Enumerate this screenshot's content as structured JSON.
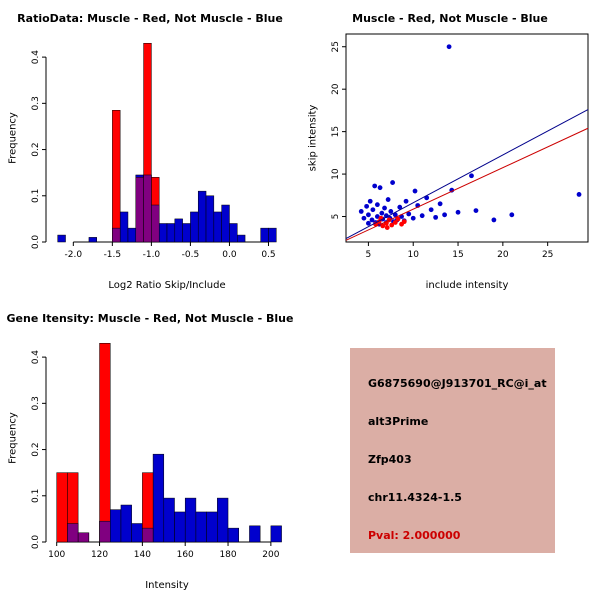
{
  "colors": {
    "muscle_red": "#FF0000",
    "not_muscle_blue": "#0000CD",
    "overlap_purple": "#800080",
    "fit_line_blue": "#00008B",
    "fit_line_red": "#CC0000"
  },
  "chart_data": [
    {
      "type": "bar",
      "title": "RatioData: Muscle - Red, Not Muscle - Blue",
      "xlabel": "Log2 Ratio Skip/Include",
      "ylabel": "Frequency",
      "xlim": [
        -2.35,
        0.75
      ],
      "ylim": [
        0,
        0.45
      ],
      "xticks": [
        -2.0,
        -1.5,
        -1.0,
        -0.5,
        0.0,
        0.5
      ],
      "yticks": [
        0.0,
        0.1,
        0.2,
        0.3,
        0.4
      ],
      "xtick_decimals": 1,
      "ytick_decimals": 1,
      "bin_width": 0.1,
      "series": [
        {
          "name": "not_muscle",
          "color": "#0000CD",
          "bins": [
            [
              -2.2,
              0.015
            ],
            [
              -1.8,
              0.01
            ],
            [
              -1.5,
              0.03
            ],
            [
              -1.4,
              0.065
            ],
            [
              -1.3,
              0.03
            ],
            [
              -1.2,
              0.145
            ],
            [
              -1.1,
              0.145
            ],
            [
              -1.0,
              0.08
            ],
            [
              -0.9,
              0.04
            ],
            [
              -0.8,
              0.04
            ],
            [
              -0.7,
              0.05
            ],
            [
              -0.6,
              0.04
            ],
            [
              -0.5,
              0.065
            ],
            [
              -0.4,
              0.11
            ],
            [
              -0.3,
              0.1
            ],
            [
              -0.2,
              0.065
            ],
            [
              -0.1,
              0.08
            ],
            [
              0.0,
              0.04
            ],
            [
              0.1,
              0.015
            ],
            [
              0.4,
              0.03
            ],
            [
              0.5,
              0.03
            ]
          ]
        },
        {
          "name": "muscle",
          "color": "#FF0000",
          "bins": [
            [
              -1.5,
              0.285
            ],
            [
              -1.2,
              0.14
            ],
            [
              -1.1,
              0.43
            ],
            [
              -1.0,
              0.14
            ]
          ]
        },
        {
          "name": "overlap",
          "color": "#800080",
          "bins": [
            [
              -1.5,
              0.03
            ],
            [
              -1.2,
              0.14
            ],
            [
              -1.1,
              0.145
            ],
            [
              -1.0,
              0.08
            ]
          ]
        }
      ]
    },
    {
      "type": "scatter",
      "title": "Muscle - Red, Not Muscle - Blue",
      "xlabel": "include intensity",
      "ylabel": "skip intensity",
      "xlim": [
        2.5,
        29.5
      ],
      "ylim": [
        2,
        26.5
      ],
      "xticks": [
        5,
        10,
        15,
        20,
        25
      ],
      "yticks": [
        5,
        10,
        15,
        20,
        25
      ],
      "frame": "box",
      "series": [
        {
          "name": "not_muscle",
          "color": "#0000CD",
          "points": [
            [
              4.2,
              5.6
            ],
            [
              4.5,
              4.8
            ],
            [
              4.8,
              6.2
            ],
            [
              5,
              4.2
            ],
            [
              5,
              5.2
            ],
            [
              5.2,
              6.8
            ],
            [
              5.4,
              4.6
            ],
            [
              5.5,
              5.8
            ],
            [
              5.7,
              8.6
            ],
            [
              5.8,
              4.3
            ],
            [
              6,
              5
            ],
            [
              6,
              6.4
            ],
            [
              6.2,
              4.1
            ],
            [
              6.3,
              8.4
            ],
            [
              6.5,
              5.4
            ],
            [
              6.6,
              4.7
            ],
            [
              6.8,
              6
            ],
            [
              7,
              4.3
            ],
            [
              7,
              5.1
            ],
            [
              7.2,
              7
            ],
            [
              7.4,
              4.8
            ],
            [
              7.5,
              5.6
            ],
            [
              7.7,
              9
            ],
            [
              7.8,
              4.4
            ],
            [
              8,
              5.2
            ],
            [
              8.2,
              4.6
            ],
            [
              8.5,
              6.1
            ],
            [
              8.7,
              5
            ],
            [
              9,
              4.5
            ],
            [
              9.2,
              6.8
            ],
            [
              9.5,
              5.3
            ],
            [
              10,
              4.8
            ],
            [
              10.2,
              8
            ],
            [
              10.5,
              6.3
            ],
            [
              11,
              5.1
            ],
            [
              11.5,
              7.2
            ],
            [
              12,
              5.8
            ],
            [
              12.5,
              4.9
            ],
            [
              13,
              6.5
            ],
            [
              13.5,
              5.2
            ],
            [
              14,
              25
            ],
            [
              14.3,
              8.1
            ],
            [
              15,
              5.5
            ],
            [
              16.5,
              9.8
            ],
            [
              17,
              5.7
            ],
            [
              19,
              4.6
            ],
            [
              21,
              5.2
            ],
            [
              28.5,
              7.6
            ]
          ]
        },
        {
          "name": "muscle",
          "color": "#FF0000",
          "points": [
            [
              5.8,
              4.1
            ],
            [
              6.2,
              4.4
            ],
            [
              6.6,
              3.9
            ],
            [
              7,
              4.2
            ],
            [
              7.3,
              4.6
            ],
            [
              7.6,
              4
            ],
            [
              8,
              4.3
            ],
            [
              8.3,
              4.7
            ],
            [
              8.7,
              4.1
            ],
            [
              9,
              4.4
            ],
            [
              7.1,
              3.7
            ],
            [
              6.4,
              4.8
            ]
          ]
        }
      ],
      "lines": [
        {
          "name": "not_muscle_fit",
          "color": "#00008B",
          "x": [
            2.5,
            29.5
          ],
          "y": [
            2.4,
            17.6
          ]
        },
        {
          "name": "muscle_fit",
          "color": "#CC0000",
          "x": [
            2.5,
            29.5
          ],
          "y": [
            2.2,
            15.4
          ]
        }
      ]
    },
    {
      "type": "bar",
      "title": "Gene Itensity: Muscle - Red, Not Muscle - Blue",
      "xlabel": "Intensity",
      "ylabel": "Frequency",
      "xlim": [
        95,
        208
      ],
      "ylim": [
        0,
        0.45
      ],
      "xticks": [
        100,
        120,
        140,
        160,
        180,
        200
      ],
      "yticks": [
        0.0,
        0.1,
        0.2,
        0.3,
        0.4
      ],
      "ytick_decimals": 1,
      "bin_width": 5,
      "series": [
        {
          "name": "not_muscle",
          "color": "#0000CD",
          "bins": [
            [
              105,
              0.04
            ],
            [
              110,
              0.02
            ],
            [
              120,
              0.045
            ],
            [
              125,
              0.07
            ],
            [
              130,
              0.08
            ],
            [
              135,
              0.04
            ],
            [
              145,
              0.19
            ],
            [
              150,
              0.095
            ],
            [
              155,
              0.065
            ],
            [
              160,
              0.095
            ],
            [
              165,
              0.065
            ],
            [
              170,
              0.065
            ],
            [
              175,
              0.095
            ],
            [
              180,
              0.03
            ],
            [
              190,
              0.035
            ],
            [
              200,
              0.035
            ]
          ]
        },
        {
          "name": "muscle",
          "color": "#FF0000",
          "bins": [
            [
              100,
              0.15
            ],
            [
              105,
              0.15
            ],
            [
              120,
              0.43
            ],
            [
              140,
              0.15
            ]
          ]
        },
        {
          "name": "overlap",
          "color": "#800080",
          "bins": [
            [
              105,
              0.04
            ],
            [
              110,
              0.02
            ],
            [
              120,
              0.045
            ],
            [
              140,
              0.03
            ]
          ]
        }
      ]
    }
  ],
  "info_panel": {
    "bg": "#DBAEA5",
    "pval_color": "#CC0000",
    "lines": [
      "G6875690@J913701_RC@i_at",
      "alt3Prime",
      "Zfp403",
      "chr11.4324-1.5",
      "Pval: 2.000000"
    ]
  }
}
